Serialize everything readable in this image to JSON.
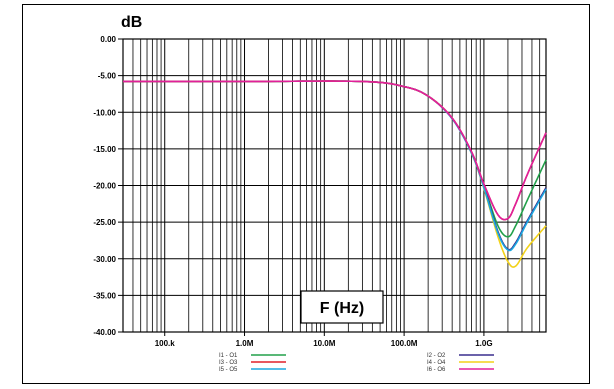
{
  "chart_data": {
    "type": "line",
    "ylabel": "dB",
    "xlabel": "F (Hz)",
    "x_scale": "log",
    "xlim": [
      30000,
      6000000000
    ],
    "ylim": [
      -40,
      0
    ],
    "grid": true,
    "legend_position": "bottom",
    "y_ticks": [
      0,
      -5,
      -10,
      -15,
      -20,
      -25,
      -30,
      -35,
      -40
    ],
    "y_tick_labels": [
      "0.00",
      "-5.00",
      "-10.00",
      "-15.00",
      "-20.00",
      "-25.00",
      "-30.00",
      "-35.00",
      "-40.00"
    ],
    "x_ticks": [
      100000,
      1000000,
      10000000,
      100000000,
      1000000000
    ],
    "x_tick_labels": [
      "100.k",
      "1.0M",
      "10.0M",
      "100.0M",
      "1.0G"
    ],
    "series": [
      {
        "name": "I1 - O1",
        "color": "#22a04a",
        "x": [
          30000,
          1000000,
          30000000,
          100000000,
          200000000,
          400000000,
          700000000,
          1000000000,
          1500000000,
          2000000000,
          2500000000,
          3500000000,
          6000000000
        ],
        "y": [
          -5.8,
          -5.8,
          -5.8,
          -6.5,
          -7.8,
          -10.8,
          -15.5,
          -20.0,
          -25.5,
          -27.0,
          -25.5,
          -22.0,
          -16.5
        ]
      },
      {
        "name": "I3 - O3",
        "color": "#e0202a",
        "x": [
          30000,
          1000000,
          30000000,
          100000000,
          200000000,
          400000000,
          700000000,
          1000000000,
          1500000000,
          2000000000,
          2500000000,
          3500000000,
          6000000000
        ],
        "y": [
          -5.8,
          -5.8,
          -5.8,
          -6.5,
          -7.8,
          -10.8,
          -15.4,
          -19.8,
          -24.0,
          -24.5,
          -22.5,
          -18.5,
          -12.8
        ]
      },
      {
        "name": "I5 - O5",
        "color": "#1ba8e0",
        "x": [
          30000,
          1000000,
          30000000,
          100000000,
          200000000,
          400000000,
          700000000,
          1000000000,
          1500000000,
          2000000000,
          2500000000,
          3500000000,
          6000000000
        ],
        "y": [
          -5.8,
          -5.8,
          -5.8,
          -6.5,
          -7.8,
          -10.9,
          -15.6,
          -20.3,
          -26.5,
          -28.8,
          -28.0,
          -25.0,
          -20.5
        ]
      },
      {
        "name": "I2 - O2",
        "color": "#3a2f8e",
        "x": [
          30000,
          1000000,
          30000000,
          100000000,
          200000000,
          400000000,
          700000000,
          1000000000,
          1500000000,
          2000000000,
          2500000000,
          3500000000,
          6000000000
        ],
        "y": [
          -5.8,
          -5.8,
          -5.8,
          -6.5,
          -7.8,
          -10.8,
          -15.5,
          -20.1,
          -26.3,
          -28.7,
          -27.8,
          -24.8,
          -20.3
        ]
      },
      {
        "name": "I4 - O4",
        "color": "#f2d21a",
        "x": [
          30000,
          1000000,
          30000000,
          100000000,
          200000000,
          400000000,
          700000000,
          1000000000,
          1500000000,
          2000000000,
          2500000000,
          3500000000,
          6000000000
        ],
        "y": [
          -5.8,
          -5.8,
          -5.8,
          -6.5,
          -7.8,
          -10.8,
          -15.6,
          -20.4,
          -27.0,
          -30.4,
          -31.0,
          -28.5,
          -25.5
        ]
      },
      {
        "name": "I6 - O6",
        "color": "#e0209a",
        "x": [
          30000,
          1000000,
          30000000,
          100000000,
          200000000,
          400000000,
          700000000,
          1000000000,
          1500000000,
          2000000000,
          2500000000,
          3500000000,
          6000000000
        ],
        "y": [
          -5.8,
          -5.8,
          -5.8,
          -6.5,
          -7.8,
          -10.8,
          -15.4,
          -19.8,
          -24.0,
          -24.5,
          -22.5,
          -18.5,
          -12.8
        ]
      }
    ]
  }
}
